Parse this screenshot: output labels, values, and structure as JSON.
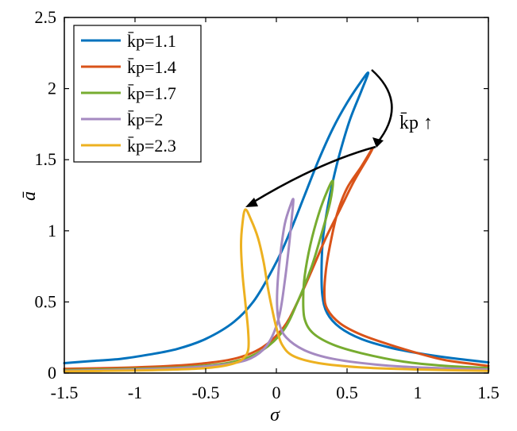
{
  "chart_data": {
    "type": "line",
    "xlabel": "σ",
    "ylabel": "ā",
    "xlim": [
      -1.5,
      1.5
    ],
    "ylim": [
      0,
      2.5
    ],
    "xticks": [
      "-1.5",
      "-1",
      "-0.5",
      "0",
      "0.5",
      "1",
      "1.5"
    ],
    "yticks": [
      "0",
      "0.5",
      "1",
      "1.5",
      "2",
      "2.5"
    ],
    "grid": false,
    "legend_position": "top-left",
    "annotation": "k̄p ↑",
    "series": [
      {
        "name": "k̄p=1.1",
        "color": "#0072BD",
        "upper": [
          [
            -1.5,
            0.07
          ],
          [
            -1.3,
            0.085
          ],
          [
            -1.1,
            0.1
          ],
          [
            -0.9,
            0.13
          ],
          [
            -0.7,
            0.17
          ],
          [
            -0.5,
            0.24
          ],
          [
            -0.3,
            0.36
          ],
          [
            -0.15,
            0.52
          ],
          [
            0.0,
            0.78
          ],
          [
            0.1,
            1.0
          ],
          [
            0.2,
            1.25
          ],
          [
            0.3,
            1.5
          ],
          [
            0.4,
            1.72
          ],
          [
            0.5,
            1.9
          ],
          [
            0.6,
            2.05
          ],
          [
            0.65,
            2.11
          ]
        ],
        "lower": [
          [
            0.65,
            2.11
          ],
          [
            0.6,
            1.98
          ],
          [
            0.52,
            1.78
          ],
          [
            0.45,
            1.55
          ],
          [
            0.4,
            1.35
          ],
          [
            0.36,
            1.15
          ],
          [
            0.33,
            0.95
          ],
          [
            0.32,
            0.75
          ],
          [
            0.325,
            0.55
          ],
          [
            0.36,
            0.42
          ],
          [
            0.45,
            0.32
          ],
          [
            0.6,
            0.24
          ],
          [
            0.8,
            0.18
          ],
          [
            1.0,
            0.14
          ],
          [
            1.2,
            0.11
          ],
          [
            1.5,
            0.075
          ]
        ]
      },
      {
        "name": "k̄p=1.4",
        "color": "#D95319",
        "upper": [
          [
            -1.5,
            0.03
          ],
          [
            -1.0,
            0.04
          ],
          [
            -0.6,
            0.06
          ],
          [
            -0.3,
            0.1
          ],
          [
            -0.1,
            0.18
          ],
          [
            0.05,
            0.32
          ],
          [
            0.15,
            0.5
          ],
          [
            0.25,
            0.72
          ],
          [
            0.35,
            0.95
          ],
          [
            0.45,
            1.15
          ],
          [
            0.55,
            1.35
          ],
          [
            0.65,
            1.52
          ],
          [
            0.68,
            1.58
          ]
        ],
        "lower": [
          [
            0.68,
            1.58
          ],
          [
            0.6,
            1.45
          ],
          [
            0.5,
            1.3
          ],
          [
            0.43,
            1.12
          ],
          [
            0.38,
            0.9
          ],
          [
            0.35,
            0.72
          ],
          [
            0.34,
            0.55
          ],
          [
            0.36,
            0.45
          ],
          [
            0.45,
            0.35
          ],
          [
            0.6,
            0.27
          ],
          [
            0.8,
            0.2
          ],
          [
            1.0,
            0.14
          ],
          [
            1.2,
            0.09
          ],
          [
            1.5,
            0.05
          ]
        ]
      },
      {
        "name": "k̄p=1.7",
        "color": "#77AC30",
        "upper": [
          [
            -1.5,
            0.02
          ],
          [
            -1.0,
            0.03
          ],
          [
            -0.6,
            0.045
          ],
          [
            -0.3,
            0.08
          ],
          [
            -0.1,
            0.16
          ],
          [
            0.05,
            0.3
          ],
          [
            0.15,
            0.5
          ],
          [
            0.25,
            0.75
          ],
          [
            0.32,
            0.98
          ],
          [
            0.38,
            1.2
          ],
          [
            0.4,
            1.35
          ]
        ],
        "lower": [
          [
            0.4,
            1.35
          ],
          [
            0.36,
            1.28
          ],
          [
            0.3,
            1.12
          ],
          [
            0.24,
            0.9
          ],
          [
            0.2,
            0.68
          ],
          [
            0.19,
            0.52
          ],
          [
            0.2,
            0.38
          ],
          [
            0.26,
            0.28
          ],
          [
            0.4,
            0.2
          ],
          [
            0.6,
            0.14
          ],
          [
            0.9,
            0.08
          ],
          [
            1.2,
            0.05
          ],
          [
            1.5,
            0.035
          ]
        ]
      },
      {
        "name": "k̄p=2",
        "color": "#A58AC1",
        "upper": [
          [
            -1.5,
            0.015
          ],
          [
            -1.0,
            0.025
          ],
          [
            -0.6,
            0.04
          ],
          [
            -0.3,
            0.07
          ],
          [
            -0.15,
            0.12
          ],
          [
            -0.05,
            0.22
          ],
          [
            0.02,
            0.4
          ],
          [
            0.06,
            0.65
          ],
          [
            0.09,
            0.9
          ],
          [
            0.11,
            1.1
          ],
          [
            0.12,
            1.22
          ]
        ],
        "lower": [
          [
            0.12,
            1.22
          ],
          [
            0.1,
            1.18
          ],
          [
            0.06,
            1.05
          ],
          [
            0.03,
            0.85
          ],
          [
            0.01,
            0.65
          ],
          [
            0.005,
            0.48
          ],
          [
            0.02,
            0.35
          ],
          [
            0.07,
            0.25
          ],
          [
            0.2,
            0.16
          ],
          [
            0.4,
            0.1
          ],
          [
            0.7,
            0.06
          ],
          [
            1.0,
            0.04
          ],
          [
            1.5,
            0.025
          ]
        ]
      },
      {
        "name": "k̄p=2.3",
        "color": "#EDB120",
        "upper": [
          [
            -1.5,
            0.012
          ],
          [
            -1.0,
            0.018
          ],
          [
            -0.7,
            0.025
          ],
          [
            -0.5,
            0.035
          ],
          [
            -0.35,
            0.055
          ],
          [
            -0.25,
            0.09
          ],
          [
            -0.2,
            0.16
          ],
          [
            -0.2,
            0.3
          ],
          [
            -0.22,
            0.5
          ],
          [
            -0.24,
            0.7
          ],
          [
            -0.25,
            0.9
          ],
          [
            -0.24,
            1.05
          ],
          [
            -0.22,
            1.15
          ]
        ],
        "lower": [
          [
            -0.22,
            1.15
          ],
          [
            -0.18,
            1.08
          ],
          [
            -0.13,
            0.95
          ],
          [
            -0.09,
            0.78
          ],
          [
            -0.06,
            0.6
          ],
          [
            -0.03,
            0.45
          ],
          [
            0.0,
            0.32
          ],
          [
            0.04,
            0.2
          ],
          [
            0.12,
            0.12
          ],
          [
            0.3,
            0.07
          ],
          [
            0.6,
            0.04
          ],
          [
            1.0,
            0.025
          ],
          [
            1.5,
            0.015
          ]
        ]
      }
    ]
  }
}
